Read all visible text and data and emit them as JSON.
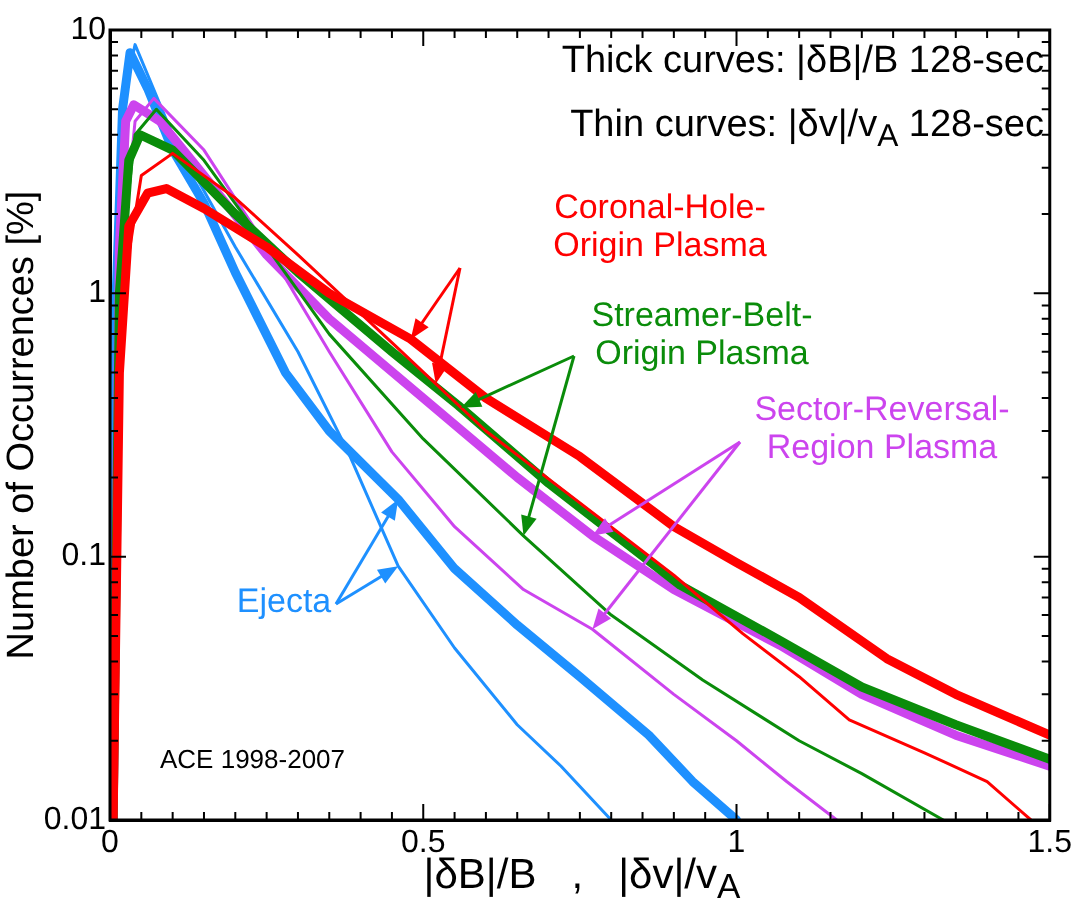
{
  "chart_data": {
    "type": "line",
    "xlabel": "|δB|/B   ,   |δv|/v$_{A}$",
    "ylabel": "Number of Occurrences [%]",
    "annotations": [
      "Thick curves: |δB|/B 128-sec",
      "Thin curves: |δv|/v$_{A}$ 128-sec",
      "ACE 1998-2007"
    ],
    "log": "y",
    "marker": "none",
    "xlim": [
      0,
      1.5
    ],
    "ylim": [
      0.01,
      10
    ],
    "xticks": [
      0,
      {
        "value": 0.05,
        "label": null
      },
      {
        "value": 0.1,
        "label": null
      },
      {
        "value": 0.15,
        "label": null
      },
      {
        "value": 0.2,
        "label": null
      },
      {
        "value": 0.25,
        "label": null
      },
      {
        "value": 0.3,
        "label": null
      },
      {
        "value": 0.35,
        "label": null
      },
      {
        "value": 0.4,
        "label": null
      },
      {
        "value": 0.45,
        "label": null
      },
      0.5,
      {
        "value": 0.55,
        "label": null
      },
      {
        "value": 0.6,
        "label": null
      },
      {
        "value": 0.65,
        "label": null
      },
      {
        "value": 0.7,
        "label": null
      },
      {
        "value": 0.75,
        "label": null
      },
      {
        "value": 0.8,
        "label": null
      },
      {
        "value": 0.85,
        "label": null
      },
      {
        "value": 0.9,
        "label": null
      },
      {
        "value": 0.95,
        "label": null
      },
      1,
      {
        "value": 1.05,
        "label": null
      },
      {
        "value": 1.1,
        "label": null
      },
      {
        "value": 1.15,
        "label": null
      },
      {
        "value": 1.2,
        "label": null
      },
      {
        "value": 1.25,
        "label": null
      },
      {
        "value": 1.3,
        "label": null
      },
      {
        "value": 1.35,
        "label": null
      },
      {
        "value": 1.4,
        "label": null
      },
      {
        "value": 1.45,
        "label": null
      },
      1.5
    ],
    "yticks": [
      0.01,
      {
        "value": 0.02,
        "label": null
      },
      {
        "value": 0.03,
        "label": null
      },
      {
        "value": 0.04,
        "label": null
      },
      {
        "value": 0.05,
        "label": null
      },
      {
        "value": 0.06,
        "label": null
      },
      {
        "value": 0.07,
        "label": null
      },
      {
        "value": 0.08,
        "label": null
      },
      {
        "value": 0.09,
        "label": null
      },
      0.1,
      {
        "value": 0.2,
        "label": null
      },
      {
        "value": 0.3,
        "label": null
      },
      {
        "value": 0.4,
        "label": null
      },
      {
        "value": 0.5,
        "label": null
      },
      {
        "value": 0.6,
        "label": null
      },
      {
        "value": 0.7,
        "label": null
      },
      {
        "value": 0.8,
        "label": null
      },
      {
        "value": 0.9,
        "label": null
      },
      1,
      {
        "value": 2,
        "label": null
      },
      {
        "value": 3,
        "label": null
      },
      {
        "value": 4,
        "label": null
      },
      {
        "value": 5,
        "label": null
      },
      {
        "value": 6,
        "label": null
      },
      {
        "value": 7,
        "label": null
      },
      {
        "value": 8,
        "label": null
      },
      {
        "value": 9,
        "label": null
      },
      10
    ],
    "series": [
      {
        "name": "Coronal-Hole-Origin Plasma",
        "color": "#ff0000",
        "x": [
          0.005,
          0.015,
          0.03,
          0.06,
          0.09,
          0.15,
          0.25,
          0.35,
          0.48,
          0.6,
          0.75,
          0.9,
          1.0,
          1.1,
          1.24,
          1.35,
          1.5
        ],
        "values": [
          0.01,
          0.5,
          1.8,
          2.4,
          2.5,
          2.1,
          1.5,
          1.0,
          0.67,
          0.4,
          0.24,
          0.13,
          0.095,
          0.07,
          0.041,
          0.03,
          0.021
        ]
      },
      {
        "color": "#ff0000",
        "x": [
          0.005,
          0.02,
          0.05,
          0.1,
          0.2,
          0.3,
          0.45,
          0.6,
          0.75,
          0.9,
          1.01,
          1.1,
          1.18,
          1.3,
          1.4,
          1.47
        ],
        "values": [
          0.01,
          1,
          2.8,
          3.4,
          2.3,
          1.4,
          0.65,
          0.3,
          0.16,
          0.085,
          0.051,
          0.035,
          0.024,
          0.018,
          0.014,
          0.01
        ]
      },
      {
        "name": "Streamer-Belt-Origin Plasma",
        "color": "#0a8c0a",
        "x": [
          0.005,
          0.015,
          0.03,
          0.048,
          0.1,
          0.2,
          0.3,
          0.45,
          0.556,
          0.7,
          0.91,
          1.07,
          1.2,
          1.35,
          1.5
        ],
        "values": [
          0.01,
          1,
          3.2,
          4.0,
          3.5,
          2.0,
          1.2,
          0.6,
          0.375,
          0.19,
          0.078,
          0.048,
          0.032,
          0.023,
          0.017
        ]
      },
      {
        "color": "#0a8c0a",
        "x": [
          0.005,
          0.02,
          0.04,
          0.074,
          0.15,
          0.25,
          0.35,
          0.5,
          0.66,
          0.8,
          0.946,
          1.1,
          1.2,
          1.33
        ],
        "values": [
          0.01,
          1.5,
          4,
          5.0,
          3.2,
          1.5,
          0.7,
          0.28,
          0.12,
          0.06,
          0.034,
          0.02,
          0.015,
          0.01
        ]
      },
      {
        "name": "Sector-Reversal-Region Plasma",
        "color": "#cc44ee",
        "x": [
          0.005,
          0.015,
          0.025,
          0.038,
          0.08,
          0.15,
          0.25,
          0.35,
          0.5,
          0.65,
          0.77,
          0.9,
          1.07,
          1.2,
          1.35,
          1.5
        ],
        "values": [
          0.01,
          1.5,
          4.5,
          5.2,
          4.5,
          2.8,
          1.4,
          0.8,
          0.4,
          0.2,
          0.12,
          0.075,
          0.046,
          0.03,
          0.021,
          0.016
        ]
      },
      {
        "color": "#cc44ee",
        "x": [
          0.005,
          0.02,
          0.04,
          0.07,
          0.15,
          0.25,
          0.35,
          0.45,
          0.55,
          0.66,
          0.77,
          0.9,
          1.0,
          1.08,
          1.16
        ],
        "values": [
          0.01,
          1.5,
          4.5,
          5.5,
          3.5,
          1.5,
          0.6,
          0.25,
          0.13,
          0.075,
          0.053,
          0.03,
          0.02,
          0.014,
          0.01
        ]
      },
      {
        "name": "Ejecta",
        "color": "#1e90ff",
        "x": [
          0.003,
          0.01,
          0.02,
          0.032,
          0.06,
          0.1,
          0.15,
          0.2,
          0.28,
          0.35,
          0.46,
          0.55,
          0.65,
          0.75,
          0.86,
          0.93,
          1.0
        ],
        "values": [
          0.01,
          1,
          5,
          8.2,
          6,
          3.5,
          2.2,
          1.2,
          0.5,
          0.3,
          0.165,
          0.09,
          0.055,
          0.035,
          0.021,
          0.014,
          0.01
        ]
      },
      {
        "color": "#1e90ff",
        "x": [
          0.004,
          0.012,
          0.025,
          0.04,
          0.1,
          0.2,
          0.3,
          0.38,
          0.46,
          0.55,
          0.65,
          0.72,
          0.8
        ],
        "values": [
          0.01,
          1,
          6,
          8.8,
          4,
          1.5,
          0.6,
          0.25,
          0.092,
          0.045,
          0.023,
          0.016,
          0.01
        ]
      }
    ]
  }
}
